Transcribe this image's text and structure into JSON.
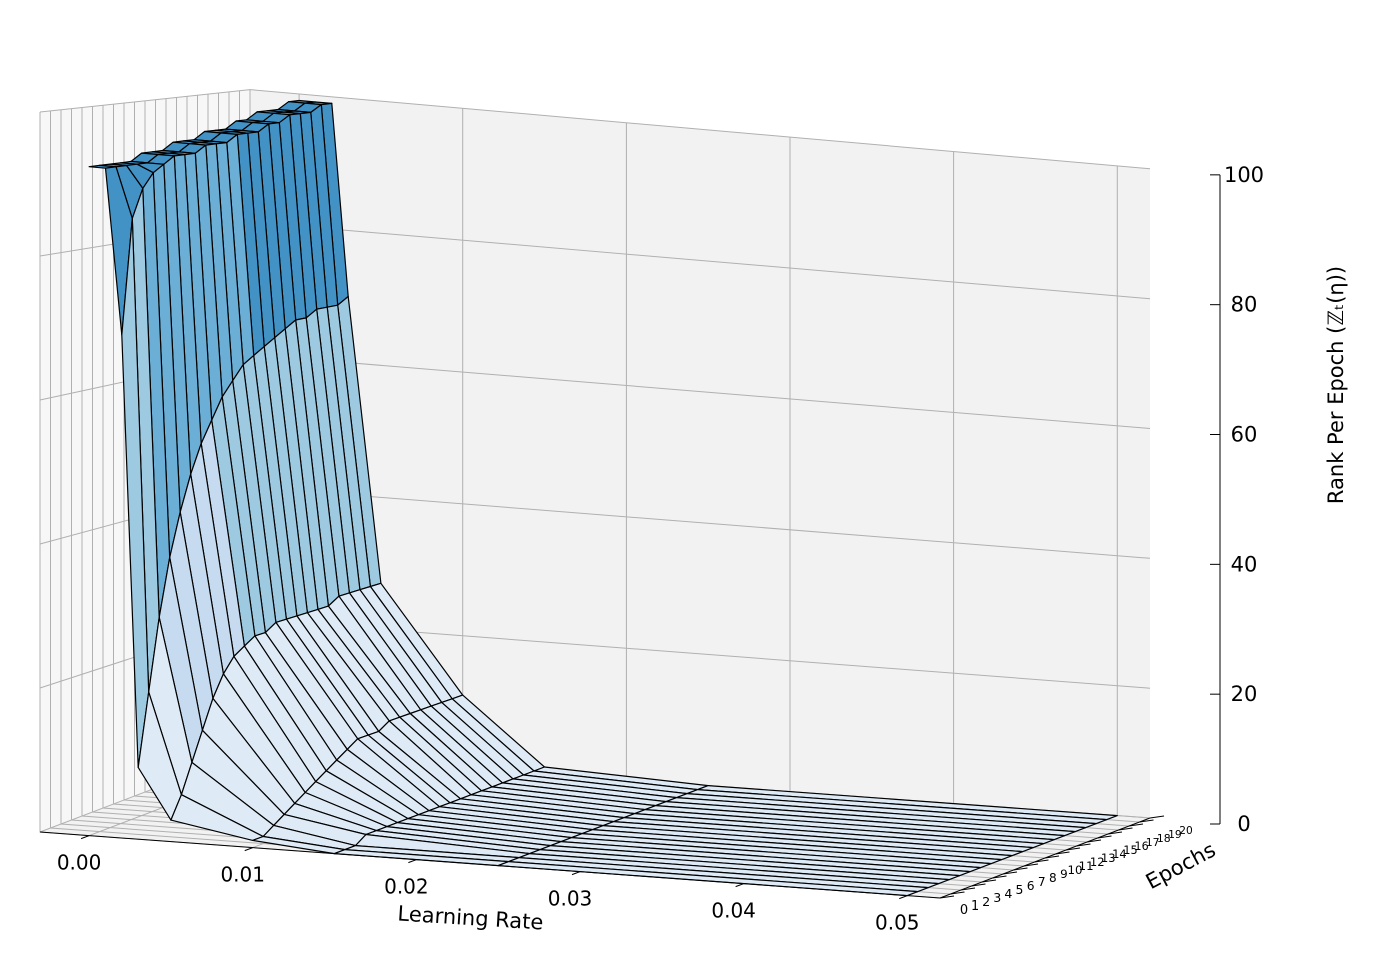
{
  "chart_data": {
    "type": "surface3d",
    "title": "",
    "xlabel": "Learning Rate",
    "ylabel": "Epochs",
    "zlabel": "Rank Per Epoch (ℤₜ(η))",
    "x": [
      0.0,
      0.001,
      0.002,
      0.003,
      0.005,
      0.01,
      0.015,
      0.025,
      0.05
    ],
    "epochs": [
      0,
      1,
      2,
      3,
      4,
      5,
      6,
      7,
      8,
      9,
      10,
      11,
      12,
      13,
      14,
      15,
      16,
      17,
      18,
      19,
      20
    ],
    "z_first_contour_row_label": "",
    "z_by_epoch": [
      [
        93,
        93,
        70,
        10,
        3,
        1,
        0,
        0,
        0
      ],
      [
        93,
        93,
        86,
        20,
        6,
        1,
        0,
        0,
        0
      ],
      [
        93,
        93,
        90,
        30,
        10,
        2,
        0,
        0,
        0
      ],
      [
        93,
        93,
        92,
        38,
        14,
        3,
        1,
        0,
        0
      ],
      [
        93,
        93,
        93,
        44,
        18,
        4,
        1,
        0,
        0
      ],
      [
        94,
        94,
        94,
        49,
        21,
        5,
        1,
        0,
        0
      ],
      [
        94,
        94,
        94,
        53,
        23,
        6,
        1,
        0,
        0
      ],
      [
        94,
        94,
        94,
        56,
        24,
        7,
        1,
        0,
        0
      ],
      [
        95,
        95,
        95,
        59,
        25,
        8,
        1,
        0,
        0
      ],
      [
        95,
        95,
        95,
        61,
        25,
        9,
        1,
        0,
        0
      ],
      [
        95,
        95,
        95,
        63,
        26,
        10,
        1,
        0,
        0
      ],
      [
        96,
        96,
        96,
        64,
        26,
        10,
        1,
        0,
        0
      ],
      [
        96,
        96,
        96,
        65,
        26,
        10,
        1,
        0,
        0
      ],
      [
        96,
        96,
        96,
        66,
        26,
        11,
        1,
        0,
        0
      ],
      [
        97,
        97,
        97,
        67,
        26,
        11,
        1,
        0,
        0
      ],
      [
        97,
        97,
        97,
        68,
        26,
        11,
        1,
        0,
        0
      ],
      [
        98,
        98,
        98,
        68,
        27,
        11,
        1,
        0,
        0
      ],
      [
        98,
        98,
        98,
        69,
        27,
        11,
        1,
        0,
        0
      ],
      [
        98,
        98,
        98,
        69,
        27,
        11,
        1,
        0,
        0
      ],
      [
        99,
        99,
        99,
        69,
        27,
        11,
        1,
        0,
        0
      ],
      [
        99,
        99,
        99,
        70,
        27,
        11,
        1,
        0,
        0
      ]
    ],
    "xlim": [
      -0.003,
      0.052
    ],
    "ylim": [
      0,
      20
    ],
    "zlim": [
      0,
      100
    ],
    "x_ticks": [
      "0.00",
      "0.01",
      "0.02",
      "0.03",
      "0.04",
      "0.05"
    ],
    "x_tick_values": [
      0.0,
      0.01,
      0.02,
      0.03,
      0.04,
      0.05
    ],
    "y_ticks": [
      "0",
      "1",
      "2",
      "3",
      "4",
      "5",
      "6",
      "7",
      "8",
      "9",
      "10",
      "11",
      "12",
      "13",
      "14",
      "15",
      "16",
      "17",
      "18",
      "19",
      "20"
    ],
    "z_ticks": [
      "0",
      "20",
      "40",
      "60",
      "80",
      "100"
    ],
    "z_tick_values": [
      0,
      20,
      40,
      60,
      80,
      100
    ],
    "colormap": [
      "#deebf7",
      "#c6dbef",
      "#9ecae1",
      "#6baed6",
      "#4292c6"
    ],
    "edge_color": "#000000",
    "pane_color": "#f2f2f2",
    "grid": true,
    "view": {
      "elev": 8,
      "azim": -70
    }
  }
}
